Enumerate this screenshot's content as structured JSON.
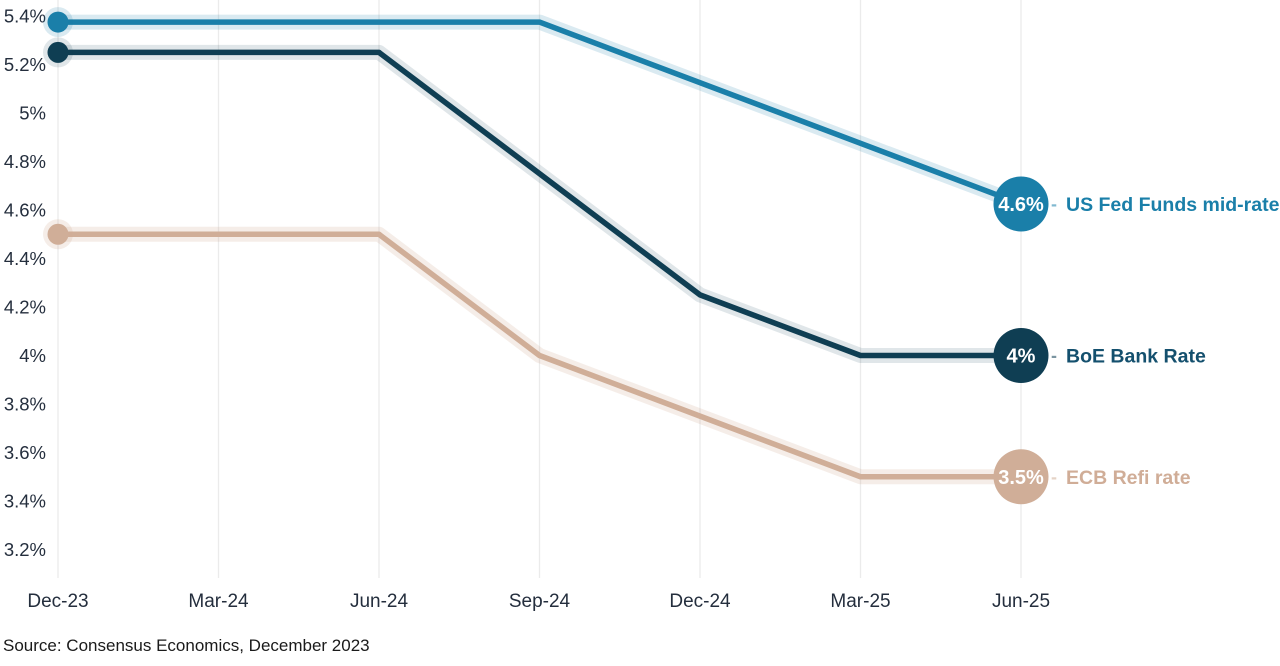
{
  "chart_data": {
    "type": "line",
    "categories": [
      "Dec-23",
      "Mar-24",
      "Jun-24",
      "Sep-24",
      "Dec-24",
      "Mar-25",
      "Jun-25"
    ],
    "y_ticks": [
      {
        "label": "5.4%",
        "value": 5.4
      },
      {
        "label": "5.2%",
        "value": 5.2
      },
      {
        "label": "5%",
        "value": 5.0
      },
      {
        "label": "4.8%",
        "value": 4.8
      },
      {
        "label": "4.6%",
        "value": 4.6
      },
      {
        "label": "4.4%",
        "value": 4.4
      },
      {
        "label": "4.2%",
        "value": 4.2
      },
      {
        "label": "4%",
        "value": 4.0
      },
      {
        "label": "3.8%",
        "value": 3.8
      },
      {
        "label": "3.6%",
        "value": 3.6
      },
      {
        "label": "3.4%",
        "value": 3.4
      },
      {
        "label": "3.2%",
        "value": 3.2
      }
    ],
    "ylim": [
      3.2,
      5.4
    ],
    "grid": true,
    "legend_position": "right-end-labels",
    "series": [
      {
        "id": "us-fed-funds",
        "name": "US Fed Funds mid-rate",
        "color": "#1a7fa9",
        "label_color": "#1a7fa9",
        "halo_opacity": 0.16,
        "end_label": "4.6%",
        "values": [
          5.375,
          5.375,
          5.375,
          5.375,
          5.125,
          4.875,
          4.625
        ]
      },
      {
        "id": "boe-bank-rate",
        "name": "BoE Bank Rate",
        "color": "#0f3e53",
        "label_color": "#14506e",
        "halo_opacity": 0.13,
        "end_label": "4%",
        "values": [
          5.25,
          5.25,
          5.25,
          4.75,
          4.25,
          4.0,
          4.0
        ]
      },
      {
        "id": "ecb-refi-rate",
        "name": "ECB Refi rate",
        "color": "#d0ae98",
        "label_color": "#d0ad97",
        "halo_opacity": 0.22,
        "end_label": "3.5%",
        "values": [
          4.5,
          4.5,
          4.5,
          4.0,
          3.75,
          3.5,
          3.5
        ]
      }
    ],
    "style": {
      "grid_color": "#ebebeb",
      "axis_text_color": "#242e3d",
      "background": "#ffffff"
    }
  },
  "source": {
    "text": "Source: Consensus Economics, December 2023"
  }
}
